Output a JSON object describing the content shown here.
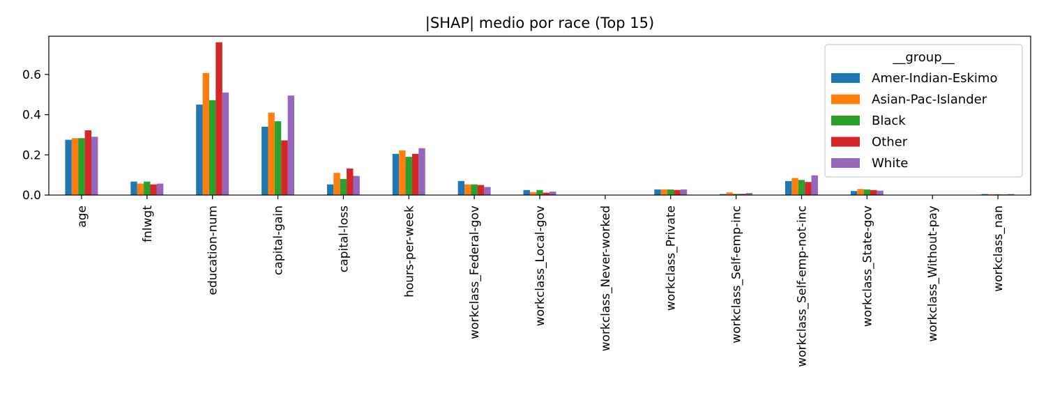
{
  "chart_data": {
    "type": "bar",
    "title": "|SHAP| medio por race (Top 15)",
    "xlabel": "",
    "ylabel": "",
    "ylim": [
      0,
      0.79
    ],
    "yticks": [
      0.0,
      0.2,
      0.4,
      0.6
    ],
    "ytick_labels": [
      "0.0",
      "0.2",
      "0.4",
      "0.6"
    ],
    "grid": false,
    "legend": {
      "title": "__group__",
      "placement": "top-right"
    },
    "categories": [
      "age",
      "fnlwgt",
      "education-num",
      "capital-gain",
      "capital-loss",
      "hours-per-week",
      "workclass_Federal-gov",
      "workclass_Local-gov",
      "workclass_Never-worked",
      "workclass_Private",
      "workclass_Self-emp-inc",
      "workclass_Self-emp-not-inc",
      "workclass_State-gov",
      "workclass_Without-pay",
      "workclass_nan"
    ],
    "series": [
      {
        "name": "Amer-Indian-Eskimo",
        "color": "#1f77b4",
        "values": [
          0.275,
          0.067,
          0.45,
          0.34,
          0.053,
          0.205,
          0.07,
          0.025,
          0.0,
          0.028,
          0.005,
          0.07,
          0.02,
          0.0,
          0.005
        ]
      },
      {
        "name": "Asian-Pac-Islander",
        "color": "#ff7f0e",
        "values": [
          0.283,
          0.057,
          0.607,
          0.41,
          0.11,
          0.222,
          0.053,
          0.015,
          0.0,
          0.028,
          0.013,
          0.085,
          0.03,
          0.0,
          0.004
        ]
      },
      {
        "name": "Black",
        "color": "#2ca02c",
        "values": [
          0.283,
          0.067,
          0.472,
          0.367,
          0.08,
          0.19,
          0.053,
          0.025,
          0.0,
          0.028,
          0.006,
          0.075,
          0.028,
          0.0,
          0.004
        ]
      },
      {
        "name": "Other",
        "color": "#d62728",
        "values": [
          0.322,
          0.053,
          0.76,
          0.272,
          0.132,
          0.205,
          0.05,
          0.012,
          0.0,
          0.025,
          0.006,
          0.065,
          0.025,
          0.0,
          0.003
        ]
      },
      {
        "name": "White",
        "color": "#9467bd",
        "values": [
          0.29,
          0.057,
          0.51,
          0.495,
          0.095,
          0.233,
          0.04,
          0.017,
          0.0,
          0.028,
          0.01,
          0.098,
          0.022,
          0.0,
          0.005
        ]
      }
    ]
  }
}
